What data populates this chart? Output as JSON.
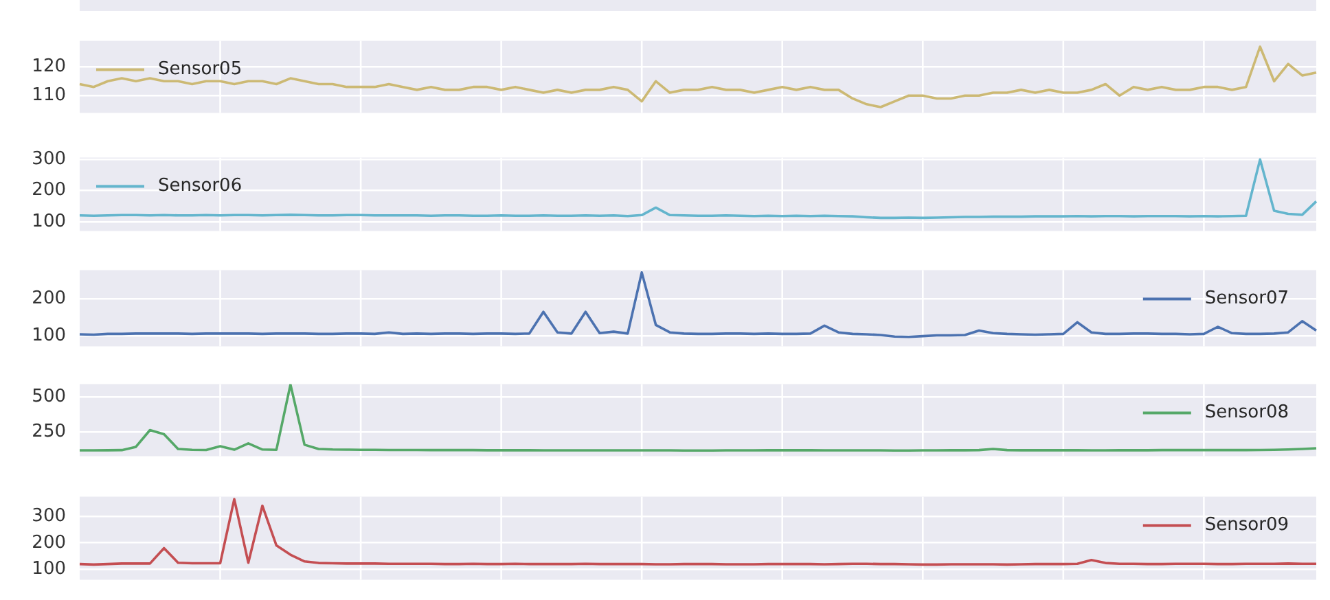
{
  "chart_data": [
    {
      "type": "line",
      "categories": [
        null,
        null,
        null,
        null,
        null,
        null,
        null,
        null,
        null,
        null,
        null,
        null,
        null,
        null,
        null,
        null,
        null,
        null,
        null,
        null,
        null,
        null,
        null,
        null,
        null,
        null,
        null,
        null,
        null,
        null,
        null,
        null,
        null,
        null,
        null,
        null,
        null,
        null,
        null,
        null,
        null,
        null,
        null,
        null,
        null,
        null,
        null,
        null,
        null,
        null,
        null,
        null,
        null,
        null,
        null,
        null,
        null,
        null,
        null,
        null,
        null,
        null,
        null,
        null,
        null,
        null,
        null,
        null,
        null,
        null,
        null,
        null,
        null,
        null,
        null,
        null,
        null,
        null,
        null,
        null,
        null,
        null,
        null,
        null,
        null,
        null,
        null,
        null,
        null
      ],
      "series": [
        {
          "name": "Sensor05",
          "color": "#ccb974",
          "values": [
            114,
            113,
            115,
            116,
            115,
            116,
            115,
            115,
            114,
            115,
            115,
            114,
            115,
            115,
            114,
            116,
            115,
            114,
            114,
            113,
            113,
            113,
            114,
            113,
            112,
            113,
            112,
            112,
            113,
            113,
            112,
            113,
            112,
            111,
            112,
            111,
            112,
            112,
            113,
            112,
            108,
            115,
            111,
            112,
            112,
            113,
            112,
            112,
            111,
            112,
            113,
            112,
            113,
            112,
            112,
            109,
            107,
            106,
            108,
            110,
            110,
            109,
            109,
            110,
            110,
            111,
            111,
            112,
            111,
            112,
            111,
            111,
            112,
            114,
            110,
            113,
            112,
            113,
            112,
            112,
            113,
            113,
            112,
            113,
            127,
            115,
            121,
            117,
            118
          ]
        }
      ],
      "ylim": [
        104,
        129
      ],
      "yticks": [
        110,
        120
      ],
      "grid": true,
      "legend": "top left",
      "tick_labels": "y"
    },
    {
      "type": "line",
      "categories": [
        null,
        null,
        null,
        null,
        null,
        null,
        null,
        null,
        null,
        null,
        null,
        null,
        null,
        null,
        null,
        null,
        null,
        null,
        null,
        null,
        null,
        null,
        null,
        null,
        null,
        null,
        null,
        null,
        null,
        null,
        null,
        null,
        null,
        null,
        null,
        null,
        null,
        null,
        null,
        null,
        null,
        null,
        null,
        null,
        null,
        null,
        null,
        null,
        null,
        null,
        null,
        null,
        null,
        null,
        null,
        null,
        null,
        null,
        null,
        null,
        null,
        null,
        null,
        null,
        null,
        null,
        null,
        null,
        null,
        null,
        null,
        null,
        null,
        null,
        null,
        null,
        null,
        null,
        null,
        null,
        null,
        null,
        null,
        null,
        null,
        null,
        null,
        null,
        null
      ],
      "series": [
        {
          "name": "Sensor06",
          "color": "#64b5cd",
          "values": [
            120,
            119,
            120,
            121,
            121,
            120,
            121,
            120,
            120,
            121,
            120,
            121,
            121,
            120,
            121,
            122,
            121,
            120,
            120,
            121,
            121,
            120,
            120,
            120,
            120,
            119,
            120,
            120,
            119,
            119,
            120,
            119,
            119,
            120,
            119,
            119,
            120,
            119,
            120,
            118,
            121,
            145,
            121,
            120,
            119,
            119,
            120,
            119,
            118,
            119,
            118,
            119,
            118,
            119,
            118,
            117,
            114,
            112,
            112,
            113,
            112,
            113,
            114,
            115,
            115,
            116,
            116,
            116,
            117,
            117,
            117,
            118,
            117,
            118,
            118,
            117,
            118,
            118,
            118,
            117,
            118,
            117,
            118,
            119,
            300,
            135,
            125,
            122,
            165
          ]
        }
      ],
      "ylim": [
        70,
        306
      ],
      "yticks": [
        100,
        200,
        300
      ],
      "grid": true,
      "legend": "top left",
      "tick_labels": "y"
    },
    {
      "type": "line",
      "categories": [
        null,
        null,
        null,
        null,
        null,
        null,
        null,
        null,
        null,
        null,
        null,
        null,
        null,
        null,
        null,
        null,
        null,
        null,
        null,
        null,
        null,
        null,
        null,
        null,
        null,
        null,
        null,
        null,
        null,
        null,
        null,
        null,
        null,
        null,
        null,
        null,
        null,
        null,
        null,
        null,
        null,
        null,
        null,
        null,
        null,
        null,
        null,
        null,
        null,
        null,
        null,
        null,
        null,
        null,
        null,
        null,
        null,
        null,
        null,
        null,
        null,
        null,
        null,
        null,
        null,
        null,
        null,
        null,
        null,
        null,
        null,
        null,
        null,
        null,
        null,
        null,
        null,
        null,
        null,
        null,
        null,
        null,
        null,
        null,
        null,
        null,
        null,
        null,
        null
      ],
      "series": [
        {
          "name": "Sensor07",
          "color": "#4c72b0",
          "values": [
            105,
            104,
            106,
            106,
            107,
            107,
            107,
            107,
            106,
            107,
            107,
            107,
            107,
            106,
            107,
            107,
            107,
            106,
            106,
            107,
            107,
            106,
            110,
            106,
            107,
            106,
            107,
            107,
            106,
            107,
            107,
            106,
            107,
            165,
            110,
            107,
            165,
            108,
            112,
            107,
            270,
            130,
            110,
            107,
            106,
            106,
            107,
            107,
            106,
            107,
            106,
            106,
            107,
            128,
            110,
            106,
            105,
            103,
            99,
            98,
            100,
            102,
            102,
            103,
            115,
            108,
            106,
            105,
            104,
            105,
            106,
            137,
            110,
            106,
            106,
            107,
            107,
            106,
            106,
            105,
            106,
            125,
            108,
            106,
            106,
            107,
            110,
            140,
            115
          ]
        }
      ],
      "ylim": [
        73,
        276
      ],
      "yticks": [
        100,
        200
      ],
      "grid": true,
      "legend": "top right",
      "tick_labels": "y"
    },
    {
      "type": "line",
      "categories": [
        null,
        null,
        null,
        null,
        null,
        null,
        null,
        null,
        null,
        null,
        null,
        null,
        null,
        null,
        null,
        null,
        null,
        null,
        null,
        null,
        null,
        null,
        null,
        null,
        null,
        null,
        null,
        null,
        null,
        null,
        null,
        null,
        null,
        null,
        null,
        null,
        null,
        null,
        null,
        null,
        null,
        null,
        null,
        null,
        null,
        null,
        null,
        null,
        null,
        null,
        null,
        null,
        null,
        null,
        null,
        null,
        null,
        null,
        null,
        null,
        null,
        null,
        null,
        null,
        null,
        null,
        null,
        null,
        null,
        null,
        null,
        null,
        null,
        null,
        null,
        null,
        null,
        null,
        null,
        null,
        null,
        null,
        null,
        null,
        null,
        null,
        null,
        null,
        null
      ],
      "series": [
        {
          "name": "Sensor08",
          "color": "#55a868",
          "values": [
            120,
            120,
            121,
            122,
            145,
            265,
            235,
            130,
            124,
            123,
            150,
            125,
            170,
            126,
            124,
            590,
            160,
            130,
            126,
            125,
            124,
            124,
            123,
            123,
            123,
            122,
            122,
            122,
            122,
            121,
            121,
            121,
            121,
            120,
            120,
            120,
            120,
            120,
            120,
            120,
            120,
            120,
            120,
            119,
            119,
            119,
            120,
            120,
            120,
            121,
            121,
            121,
            121,
            120,
            120,
            120,
            120,
            120,
            119,
            119,
            120,
            120,
            121,
            121,
            122,
            130,
            122,
            121,
            121,
            121,
            121,
            121,
            120,
            120,
            121,
            121,
            121,
            122,
            122,
            122,
            122,
            122,
            122,
            122,
            123,
            124,
            126,
            130,
            135
          ]
        }
      ],
      "ylim": [
        79,
        593
      ],
      "yticks": [
        250,
        500
      ],
      "grid": true,
      "legend": "top right",
      "tick_labels": "y"
    },
    {
      "type": "line",
      "categories": [
        null,
        null,
        null,
        null,
        null,
        null,
        null,
        null,
        null,
        null,
        null,
        null,
        null,
        null,
        null,
        null,
        null,
        null,
        null,
        null,
        null,
        null,
        null,
        null,
        null,
        null,
        null,
        null,
        null,
        null,
        null,
        null,
        null,
        null,
        null,
        null,
        null,
        null,
        null,
        null,
        null,
        null,
        null,
        null,
        null,
        null,
        null,
        null,
        null,
        null,
        null,
        null,
        null,
        null,
        null,
        null,
        null,
        null,
        null,
        null,
        null,
        null,
        null,
        null,
        null,
        null,
        null,
        null,
        null,
        null,
        null,
        null,
        null,
        null,
        null,
        null,
        null,
        null,
        null,
        null,
        null,
        null,
        null,
        null,
        null,
        null,
        null,
        null,
        null
      ],
      "series": [
        {
          "name": "Sensor09",
          "color": "#c44e52",
          "values": [
            120,
            118,
            120,
            122,
            122,
            122,
            180,
            125,
            123,
            123,
            123,
            365,
            125,
            340,
            190,
            155,
            130,
            124,
            123,
            122,
            122,
            122,
            121,
            121,
            121,
            121,
            120,
            120,
            121,
            120,
            120,
            121,
            120,
            120,
            120,
            120,
            121,
            120,
            120,
            120,
            120,
            119,
            119,
            120,
            120,
            120,
            119,
            119,
            119,
            120,
            120,
            120,
            120,
            119,
            120,
            121,
            121,
            120,
            120,
            119,
            118,
            118,
            119,
            119,
            119,
            119,
            118,
            119,
            120,
            120,
            120,
            121,
            135,
            124,
            121,
            121,
            120,
            120,
            121,
            121,
            121,
            120,
            120,
            121,
            121,
            121,
            122,
            121,
            121
          ]
        }
      ],
      "ylim": [
        61,
        374
      ],
      "yticks": [
        100,
        200,
        300
      ],
      "grid": true,
      "legend": "top right",
      "tick_labels": "y"
    }
  ]
}
